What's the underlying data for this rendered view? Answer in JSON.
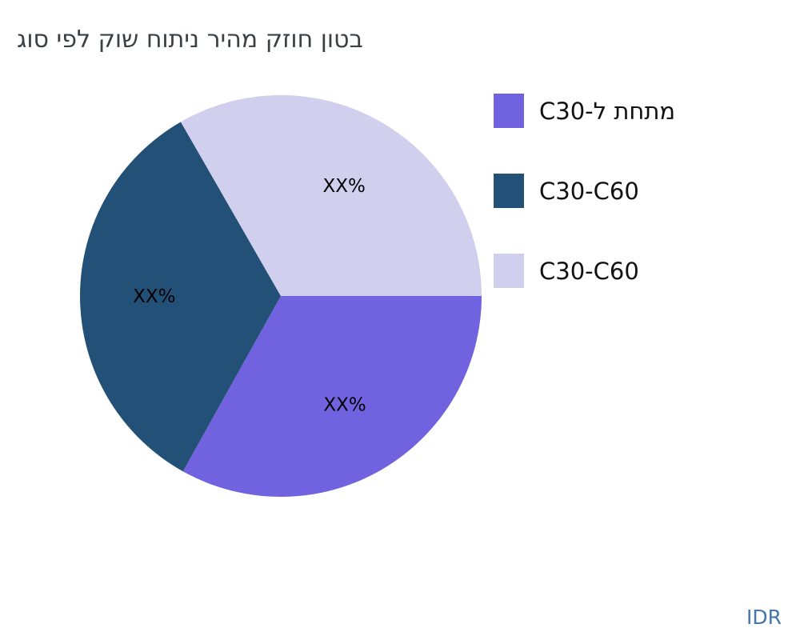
{
  "title": {
    "text": "בטון חוזק מהיר ניתוח שוק לפי סוג",
    "color": "#3B4045"
  },
  "watermark": {
    "text": "IDR",
    "color": "#4676AC"
  },
  "chart_data": {
    "type": "pie",
    "title": "בטון חוזק מהיר ניתוח שוק לפי סוג",
    "legend_position": "right",
    "start_angle": 0,
    "counterclock": false,
    "categories": [
      "מתחת ל-C30",
      "C30-C60",
      "C30-C60"
    ],
    "slices": [
      {
        "label": "מתחת ל-C30",
        "value": 33.1,
        "display_label": "XX%",
        "color": "#7163E0"
      },
      {
        "label": "C30-C60",
        "value": 33.6,
        "display_label": "XX%",
        "color": "#235077"
      },
      {
        "label": "C30-C60",
        "value": 33.3,
        "display_label": "XX%",
        "color": "#D0CFEE"
      }
    ],
    "label_color": "#000000"
  }
}
